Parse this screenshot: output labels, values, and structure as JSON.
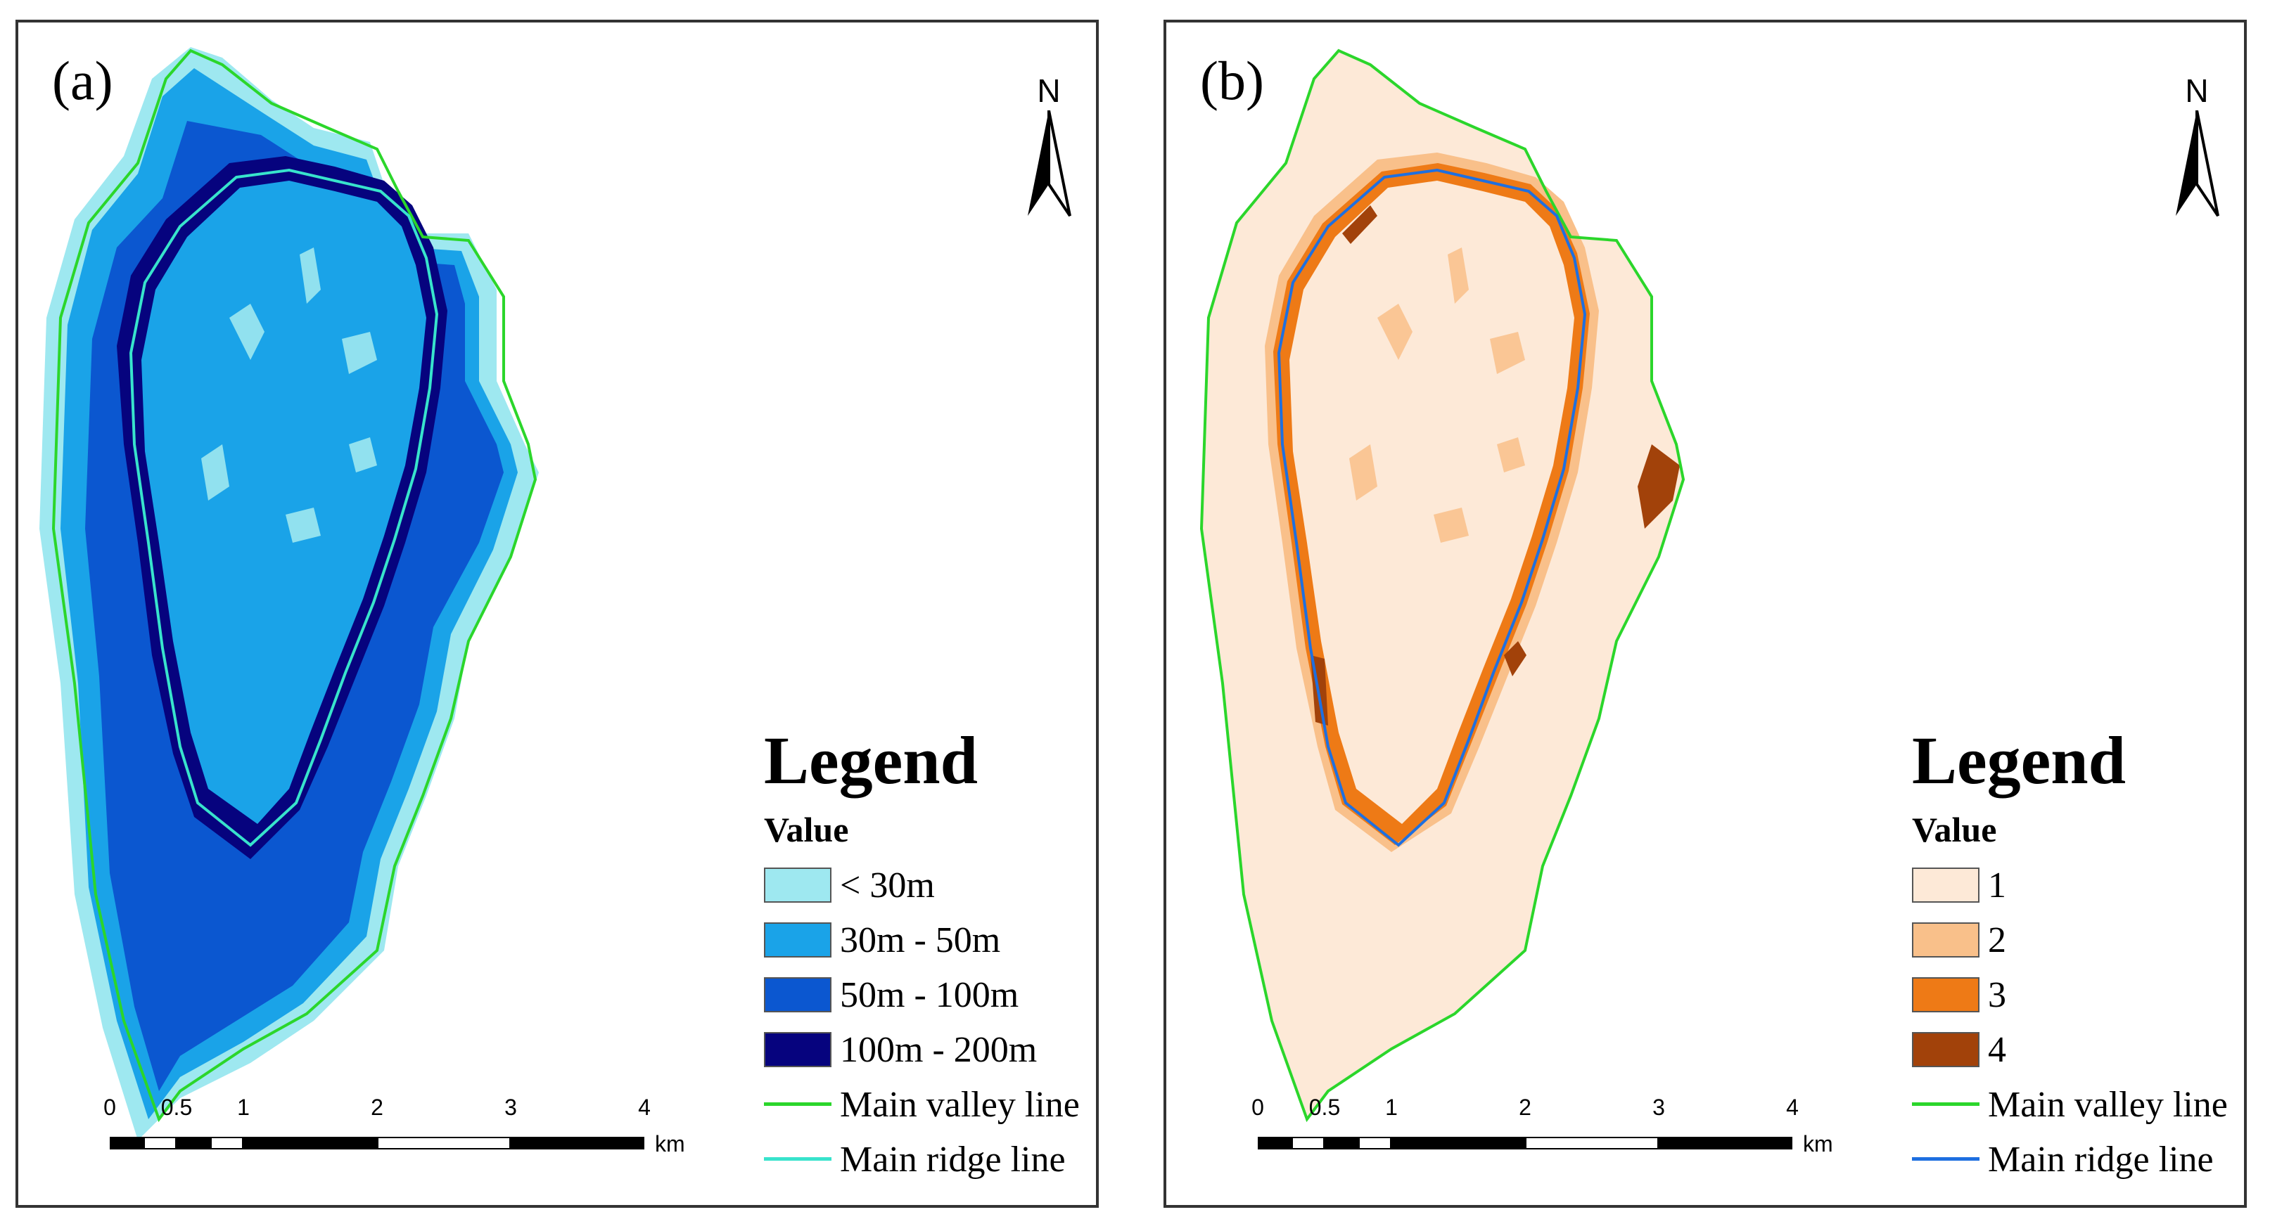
{
  "panel_a": {
    "label": "(a)",
    "north": "N",
    "legend_title": "Legend",
    "legend_sub": "Value",
    "classes": [
      {
        "label": "< 30m",
        "color": "#9ee8f0"
      },
      {
        "label": "30m - 50m",
        "color": "#1aa3e8"
      },
      {
        "label": "50m - 100m",
        "color": "#0b57d0"
      },
      {
        "label": "100m - 200m",
        "color": "#06037e"
      }
    ],
    "lines": [
      {
        "label": "Main valley line",
        "color": "#2bd62b"
      },
      {
        "label": "Main ridge line",
        "color": "#38e3cc"
      }
    ]
  },
  "panel_b": {
    "label": "(b)",
    "north": "N",
    "legend_title": "Legend",
    "legend_sub": "Value",
    "classes": [
      {
        "label": "1",
        "color": "#fde9d7"
      },
      {
        "label": "2",
        "color": "#f9c08a"
      },
      {
        "label": "3",
        "color": "#ee7a16"
      },
      {
        "label": "4",
        "color": "#a2420a"
      }
    ],
    "lines": [
      {
        "label": "Main valley line",
        "color": "#2bd62b"
      },
      {
        "label": "Main ridge line",
        "color": "#1e6fe0"
      }
    ]
  },
  "scale": {
    "ticks": [
      "0",
      "0.5",
      "1",
      "2",
      "3",
      "4"
    ],
    "unit": "km"
  }
}
